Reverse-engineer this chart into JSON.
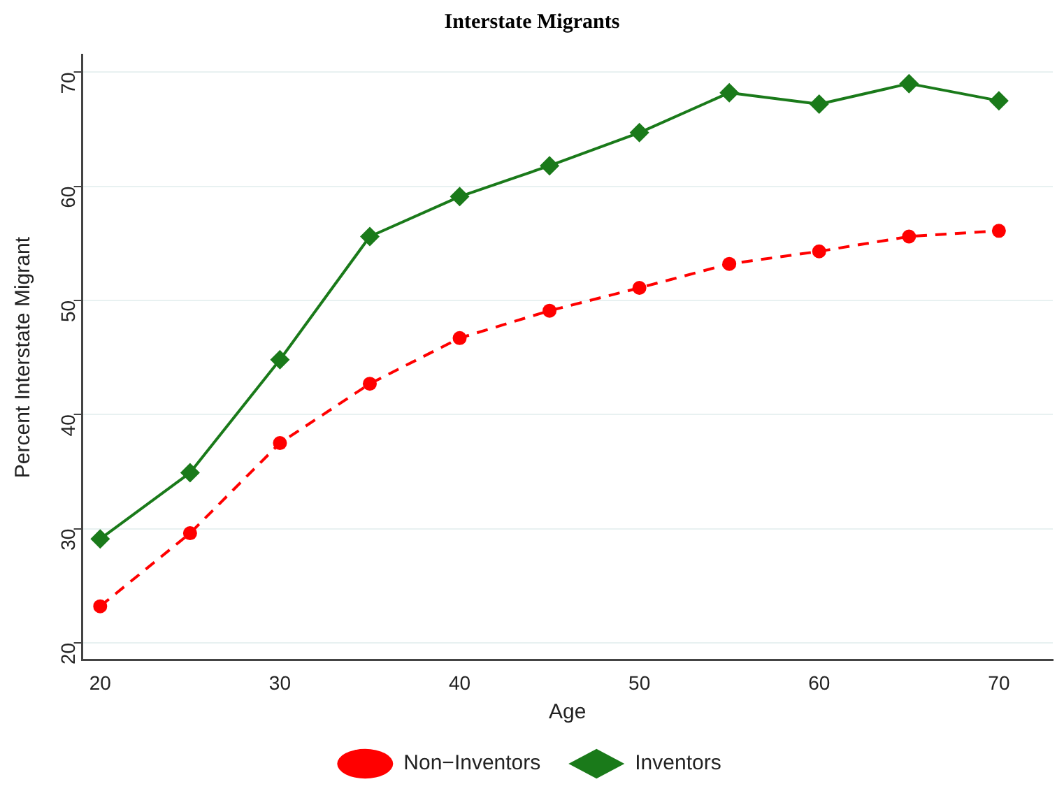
{
  "chart_data": {
    "type": "line",
    "title": "Interstate Migrants",
    "xlabel": "Age",
    "ylabel": "Percent Interstate Migrant",
    "x": [
      20,
      25,
      30,
      35,
      40,
      45,
      50,
      55,
      60,
      65,
      70
    ],
    "series": [
      {
        "name": "Non−Inventors",
        "color": "#ff0000",
        "marker": "circle",
        "line_style": "dashed",
        "values": [
          23.2,
          29.6,
          37.5,
          42.7,
          46.7,
          49.1,
          51.1,
          53.2,
          54.3,
          55.6,
          56.1
        ]
      },
      {
        "name": "Inventors",
        "color": "#1a7a1a",
        "marker": "diamond",
        "line_style": "solid",
        "values": [
          29.1,
          34.9,
          44.8,
          55.6,
          59.1,
          61.8,
          64.7,
          68.2,
          67.2,
          69.0,
          67.5
        ]
      }
    ],
    "xlim": [
      19,
      73
    ],
    "xticks": [
      20,
      30,
      40,
      50,
      60,
      70
    ],
    "ylim": [
      18.5,
      71.5
    ],
    "yticks": [
      20,
      30,
      40,
      50,
      60,
      70
    ],
    "grid": "y",
    "legend": "bottom"
  }
}
